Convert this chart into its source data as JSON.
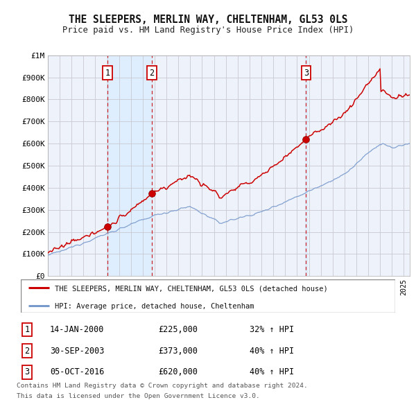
{
  "title": "THE SLEEPERS, MERLIN WAY, CHELTENHAM, GL53 0LS",
  "subtitle": "Price paid vs. HM Land Registry's House Price Index (HPI)",
  "background_color": "#ffffff",
  "grid_color": "#c8c8d0",
  "red_line_color": "#cc0000",
  "blue_line_color": "#7799cc",
  "sale_line_color": "#cc0000",
  "sale_bg_color": "#ddeeff",
  "ylim": [
    0,
    1000000
  ],
  "yticks": [
    0,
    100000,
    200000,
    300000,
    400000,
    500000,
    600000,
    700000,
    800000,
    900000,
    1000000
  ],
  "ytick_labels": [
    "£0",
    "£100K",
    "£200K",
    "£300K",
    "£400K",
    "£500K",
    "£600K",
    "£700K",
    "£800K",
    "£900K",
    "£1M"
  ],
  "xmin": 1995.0,
  "xmax": 2025.5,
  "sales": [
    {
      "label": "1",
      "date_num": 2000.04,
      "price": 225000
    },
    {
      "label": "2",
      "date_num": 2003.75,
      "price": 373000
    },
    {
      "label": "3",
      "date_num": 2016.76,
      "price": 620000
    }
  ],
  "sale_band_x1": 1999.5,
  "sale_band_x2": 2004.5,
  "legend_entries": [
    "THE SLEEPERS, MERLIN WAY, CHELTENHAM, GL53 0LS (detached house)",
    "HPI: Average price, detached house, Cheltenham"
  ],
  "table_rows": [
    {
      "num": "1",
      "date": "14-JAN-2000",
      "price": "£225,000",
      "hpi": "32% ↑ HPI"
    },
    {
      "num": "2",
      "date": "30-SEP-2003",
      "price": "£373,000",
      "hpi": "40% ↑ HPI"
    },
    {
      "num": "3",
      "date": "05-OCT-2016",
      "price": "£620,000",
      "hpi": "40% ↑ HPI"
    }
  ],
  "footnote1": "Contains HM Land Registry data © Crown copyright and database right 2024.",
  "footnote2": "This data is licensed under the Open Government Licence v3.0."
}
